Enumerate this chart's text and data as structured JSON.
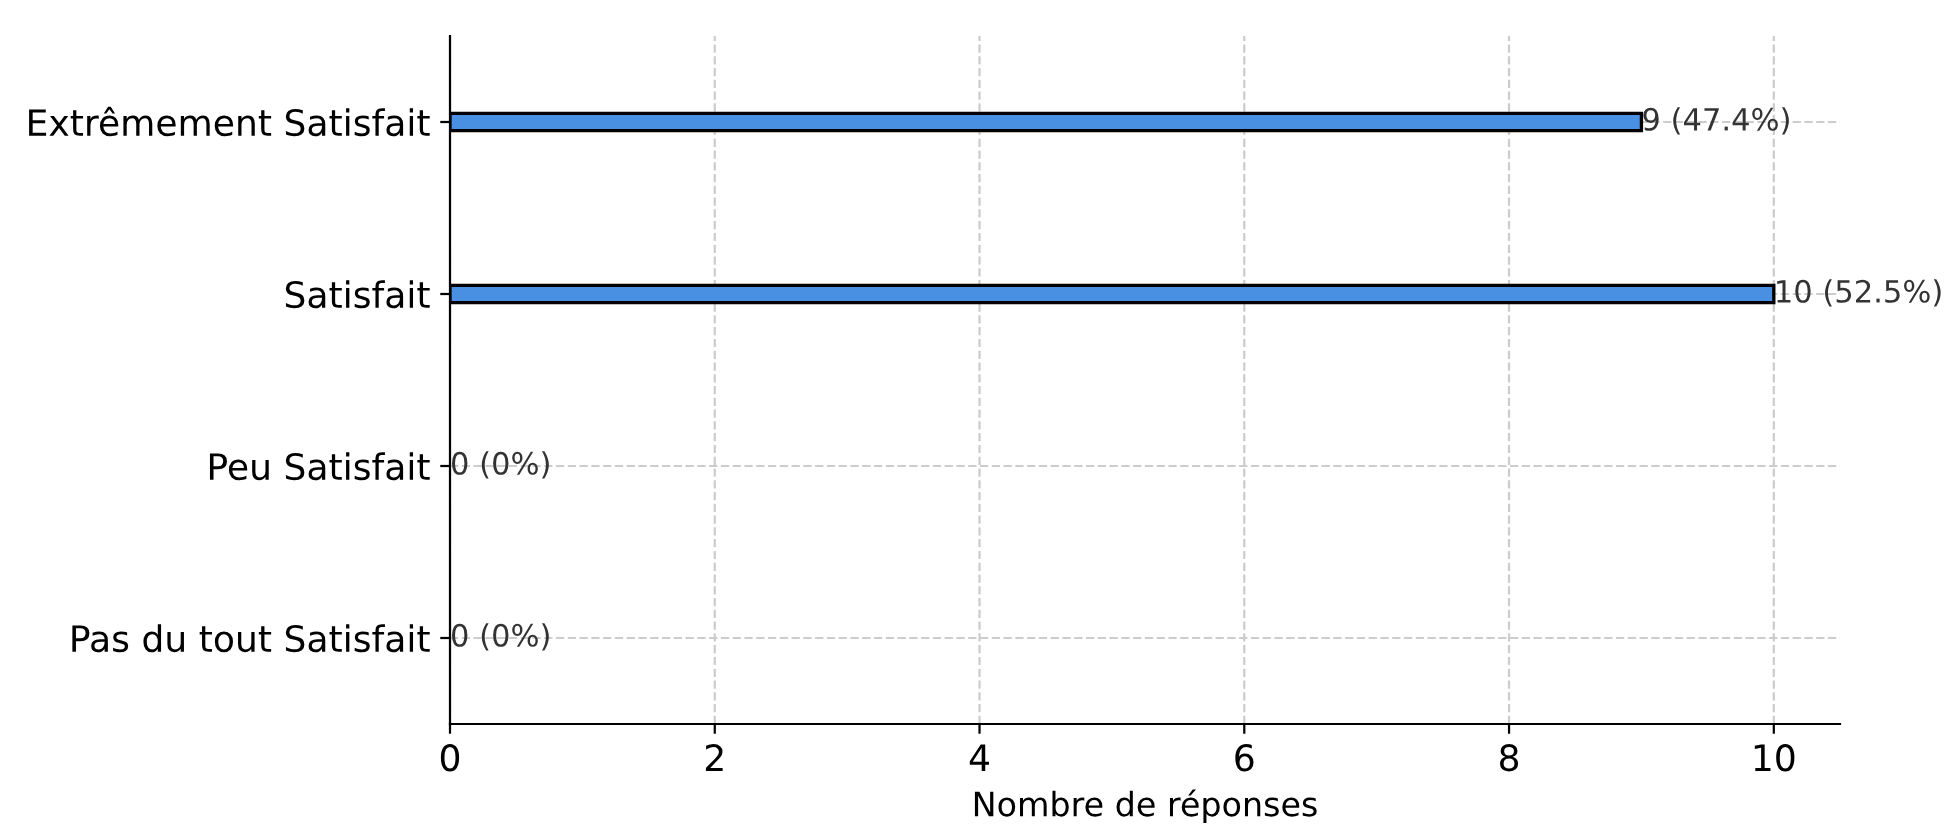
{
  "chart_data": {
    "type": "bar",
    "orientation": "horizontal",
    "xlabel": "Nombre de réponses",
    "categories": [
      "Extrêmement Satisfait",
      "Satisfait",
      "Peu Satisfait",
      "Pas du tout Satisfait"
    ],
    "values": [
      9,
      10,
      0,
      0
    ],
    "value_labels": [
      "9 (47.4%)",
      "10 (52.5%)",
      "0 (0%)",
      "0 (0%)"
    ],
    "color": "#4a90e2",
    "xlim": [
      0,
      10.5
    ],
    "xticks": [
      0,
      2,
      4,
      6,
      8,
      10
    ],
    "grid": true
  }
}
